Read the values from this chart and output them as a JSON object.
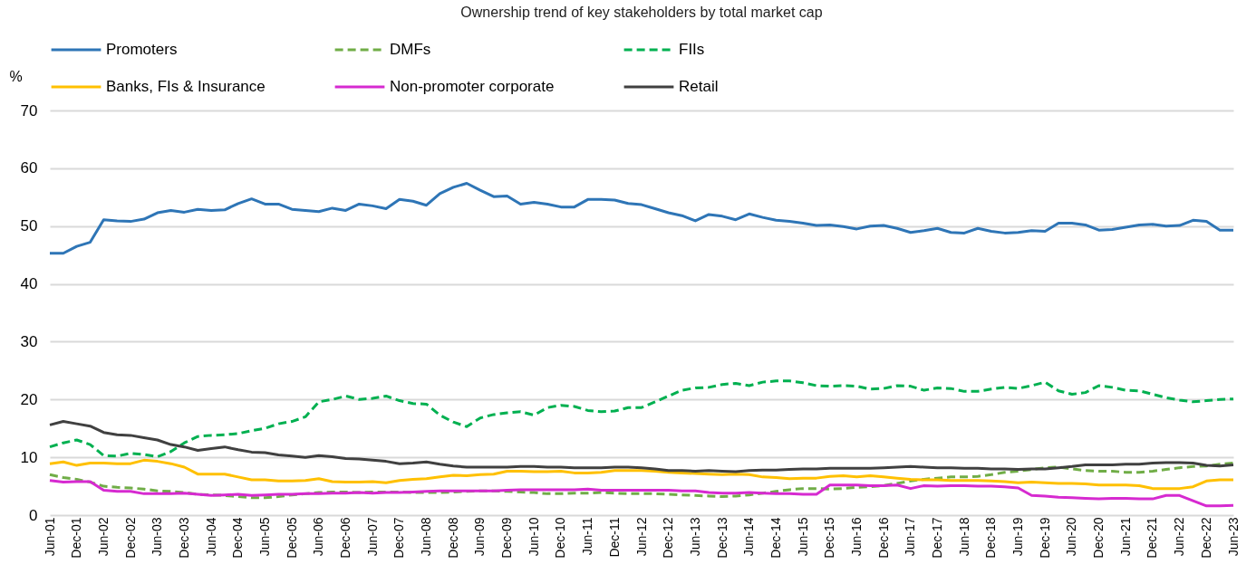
{
  "chart_data": {
    "type": "line",
    "title": "Ownership trend of key stakeholders by total market cap",
    "ylabel": "%",
    "categories": [
      "Jun-01",
      null,
      "Dec-01",
      null,
      "Jun-02",
      null,
      "Dec-02",
      null,
      "Jun-03",
      null,
      "Dec-03",
      null,
      "Jun-04",
      null,
      "Dec-04",
      null,
      "Jun-05",
      null,
      "Dec-05",
      null,
      "Jun-06",
      null,
      "Dec-06",
      null,
      "Jun-07",
      null,
      "Dec-07",
      null,
      "Jun-08",
      null,
      "Dec-08",
      null,
      "Jun-09",
      null,
      "Dec-09",
      null,
      "Jun-10",
      null,
      "Dec-10",
      null,
      "Jun-11",
      null,
      "Dec-11",
      null,
      "Jun-12",
      null,
      "Dec-12",
      null,
      "Jun-13",
      null,
      "Dec-13",
      null,
      "Jun-14",
      null,
      "Dec-14",
      null,
      "Jun-15",
      null,
      "Dec-15",
      null,
      "Jun-16",
      null,
      "Dec-16",
      null,
      "Jun-17",
      null,
      "Dec-17",
      null,
      "Jun-18",
      null,
      "Dec-18",
      null,
      "Jun-19",
      null,
      "Dec-19",
      null,
      "Jun-20",
      null,
      "Dec-20",
      null,
      "Jun-21",
      null,
      "Dec-21",
      null,
      "Jun-22",
      null,
      "Dec-22",
      null,
      "Jun-23"
    ],
    "series": [
      {
        "name": "Promoters",
        "color": "#2e75b6",
        "line_style": "solid",
        "values": [
          45.3,
          45.3,
          46.5,
          47.2,
          51.1,
          50.9,
          50.8,
          51.2,
          52.3,
          52.7,
          52.4,
          52.9,
          52.7,
          52.8,
          53.9,
          54.7,
          53.8,
          53.8,
          52.9,
          52.7,
          52.5,
          53.1,
          52.7,
          53.8,
          53.5,
          53.0,
          54.6,
          54.3,
          53.6,
          55.6,
          56.7,
          57.4,
          56.2,
          55.1,
          55.2,
          53.8,
          54.1,
          53.8,
          53.3,
          53.3,
          54.6,
          54.6,
          54.5,
          53.9,
          53.7,
          53.0,
          52.3,
          51.8,
          50.9,
          52.0,
          51.7,
          51.1,
          52.1,
          51.5,
          51.0,
          50.8,
          50.5,
          50.1,
          50.2,
          49.9,
          49.5,
          50.0,
          50.1,
          49.6,
          48.9,
          49.2,
          49.6,
          48.9,
          48.8,
          49.6,
          49.1,
          48.8,
          48.9,
          49.2,
          49.1,
          50.5,
          50.5,
          50.2,
          49.3,
          49.4,
          49.8,
          50.2,
          50.3,
          50.0,
          50.1,
          51.0,
          50.8,
          49.3,
          49.3
        ]
      },
      {
        "name": "DMFs",
        "color": "#70ad47",
        "line_style": "dashed",
        "values": [
          7.0,
          6.5,
          6.2,
          5.7,
          5.0,
          4.8,
          4.7,
          4.5,
          4.2,
          4.1,
          3.9,
          3.6,
          3.5,
          3.4,
          3.2,
          3.0,
          3.0,
          3.2,
          3.5,
          3.7,
          3.9,
          4.0,
          4.0,
          3.9,
          4.0,
          4.0,
          4.0,
          3.9,
          3.9,
          3.9,
          4.0,
          4.1,
          4.2,
          4.2,
          4.1,
          4.0,
          3.9,
          3.7,
          3.7,
          3.8,
          3.8,
          3.9,
          3.8,
          3.7,
          3.7,
          3.7,
          3.6,
          3.5,
          3.4,
          3.3,
          3.2,
          3.3,
          3.5,
          3.8,
          4.1,
          4.4,
          4.6,
          4.6,
          4.5,
          4.6,
          4.8,
          4.9,
          5.1,
          5.5,
          5.9,
          6.2,
          6.4,
          6.6,
          6.6,
          6.7,
          7.0,
          7.4,
          7.6,
          7.9,
          8.2,
          8.3,
          8.0,
          7.7,
          7.6,
          7.6,
          7.4,
          7.4,
          7.6,
          7.9,
          8.2,
          8.4,
          8.5,
          8.8,
          9.0
        ]
      },
      {
        "name": "FIIs",
        "color": "#00b050",
        "line_style": "dashed",
        "values": [
          11.8,
          12.5,
          13.0,
          12.2,
          10.3,
          10.2,
          10.7,
          10.5,
          10.1,
          11.0,
          12.5,
          13.6,
          13.8,
          13.9,
          14.1,
          14.6,
          15.0,
          15.8,
          16.2,
          17.0,
          19.6,
          20.0,
          20.6,
          20.0,
          20.2,
          20.6,
          19.8,
          19.3,
          19.2,
          17.3,
          16.1,
          15.3,
          16.8,
          17.4,
          17.7,
          17.9,
          17.3,
          18.6,
          19.0,
          18.8,
          18.1,
          17.9,
          18.0,
          18.6,
          18.6,
          19.6,
          20.6,
          21.6,
          22.0,
          22.1,
          22.6,
          22.8,
          22.4,
          23.0,
          23.2,
          23.2,
          22.9,
          22.4,
          22.3,
          22.4,
          22.3,
          21.8,
          21.9,
          22.4,
          22.3,
          21.6,
          22.0,
          21.9,
          21.4,
          21.4,
          21.8,
          22.1,
          21.9,
          22.4,
          23.0,
          21.5,
          20.9,
          21.2,
          22.4,
          22.1,
          21.6,
          21.5,
          20.9,
          20.3,
          19.9,
          19.6,
          19.8,
          20.0,
          20.1
        ]
      },
      {
        "name": "Banks, FIs & Insurance",
        "color": "#ffc000",
        "line_style": "solid",
        "values": [
          8.9,
          9.2,
          8.6,
          9.0,
          9.0,
          8.9,
          8.9,
          9.5,
          9.3,
          8.9,
          8.3,
          7.1,
          7.1,
          7.1,
          6.6,
          6.1,
          6.1,
          5.9,
          5.9,
          6.0,
          6.3,
          5.8,
          5.7,
          5.7,
          5.8,
          5.6,
          6.0,
          6.2,
          6.3,
          6.6,
          6.9,
          6.8,
          7.0,
          7.1,
          7.6,
          7.6,
          7.5,
          7.5,
          7.6,
          7.3,
          7.3,
          7.4,
          7.7,
          7.7,
          7.7,
          7.6,
          7.4,
          7.3,
          7.2,
          7.1,
          7.0,
          7.1,
          7.0,
          6.6,
          6.5,
          6.3,
          6.4,
          6.4,
          6.7,
          6.8,
          6.6,
          6.8,
          6.6,
          6.4,
          6.2,
          6.1,
          6.1,
          6.0,
          6.0,
          6.0,
          5.9,
          5.8,
          5.6,
          5.7,
          5.6,
          5.5,
          5.5,
          5.4,
          5.2,
          5.2,
          5.2,
          5.1,
          4.6,
          4.6,
          4.6,
          4.9,
          5.9,
          6.1,
          6.1
        ]
      },
      {
        "name": "Non-promoter corporate",
        "color": "#d62ad0",
        "line_style": "solid",
        "values": [
          6.0,
          5.7,
          5.8,
          5.8,
          4.3,
          4.1,
          4.1,
          3.7,
          3.7,
          3.7,
          3.8,
          3.6,
          3.4,
          3.5,
          3.6,
          3.4,
          3.5,
          3.6,
          3.6,
          3.7,
          3.7,
          3.8,
          3.8,
          3.9,
          3.8,
          3.9,
          3.9,
          4.0,
          4.1,
          4.2,
          4.2,
          4.2,
          4.2,
          4.2,
          4.3,
          4.4,
          4.4,
          4.4,
          4.4,
          4.4,
          4.5,
          4.3,
          4.3,
          4.3,
          4.3,
          4.3,
          4.3,
          4.2,
          4.2,
          3.9,
          3.8,
          3.8,
          3.9,
          3.8,
          3.7,
          3.7,
          3.6,
          3.6,
          5.2,
          5.2,
          5.2,
          5.1,
          5.1,
          5.2,
          4.6,
          5.1,
          5.0,
          5.1,
          5.1,
          5.0,
          5.0,
          4.9,
          4.7,
          3.4,
          3.3,
          3.1,
          3.0,
          2.9,
          2.8,
          2.9,
          2.9,
          2.8,
          2.8,
          3.4,
          3.4,
          2.5,
          1.6,
          1.6,
          1.7
        ]
      },
      {
        "name": "Retail",
        "color": "#404040",
        "line_style": "solid",
        "values": [
          15.6,
          16.2,
          15.8,
          15.4,
          14.3,
          13.9,
          13.8,
          13.4,
          13.0,
          12.2,
          11.8,
          11.2,
          11.5,
          11.8,
          11.3,
          10.9,
          10.8,
          10.4,
          10.2,
          10.0,
          10.3,
          10.1,
          9.8,
          9.7,
          9.5,
          9.3,
          8.9,
          9.0,
          9.2,
          8.8,
          8.5,
          8.3,
          8.3,
          8.3,
          8.3,
          8.4,
          8.4,
          8.3,
          8.3,
          8.2,
          8.2,
          8.2,
          8.3,
          8.3,
          8.2,
          8.0,
          7.7,
          7.7,
          7.6,
          7.7,
          7.6,
          7.5,
          7.7,
          7.8,
          7.8,
          7.9,
          8.0,
          8.0,
          8.1,
          8.1,
          8.1,
          8.1,
          8.2,
          8.3,
          8.4,
          8.3,
          8.2,
          8.2,
          8.1,
          8.1,
          8.0,
          8.0,
          7.9,
          8.0,
          8.0,
          8.2,
          8.4,
          8.7,
          8.7,
          8.7,
          8.8,
          8.8,
          9.0,
          9.1,
          9.1,
          9.0,
          8.6,
          8.5,
          8.7
        ]
      }
    ],
    "ylim": [
      0,
      70
    ],
    "yticks": [
      0,
      10,
      20,
      30,
      40,
      50,
      60,
      70
    ],
    "grid": "y",
    "legend": "top"
  }
}
